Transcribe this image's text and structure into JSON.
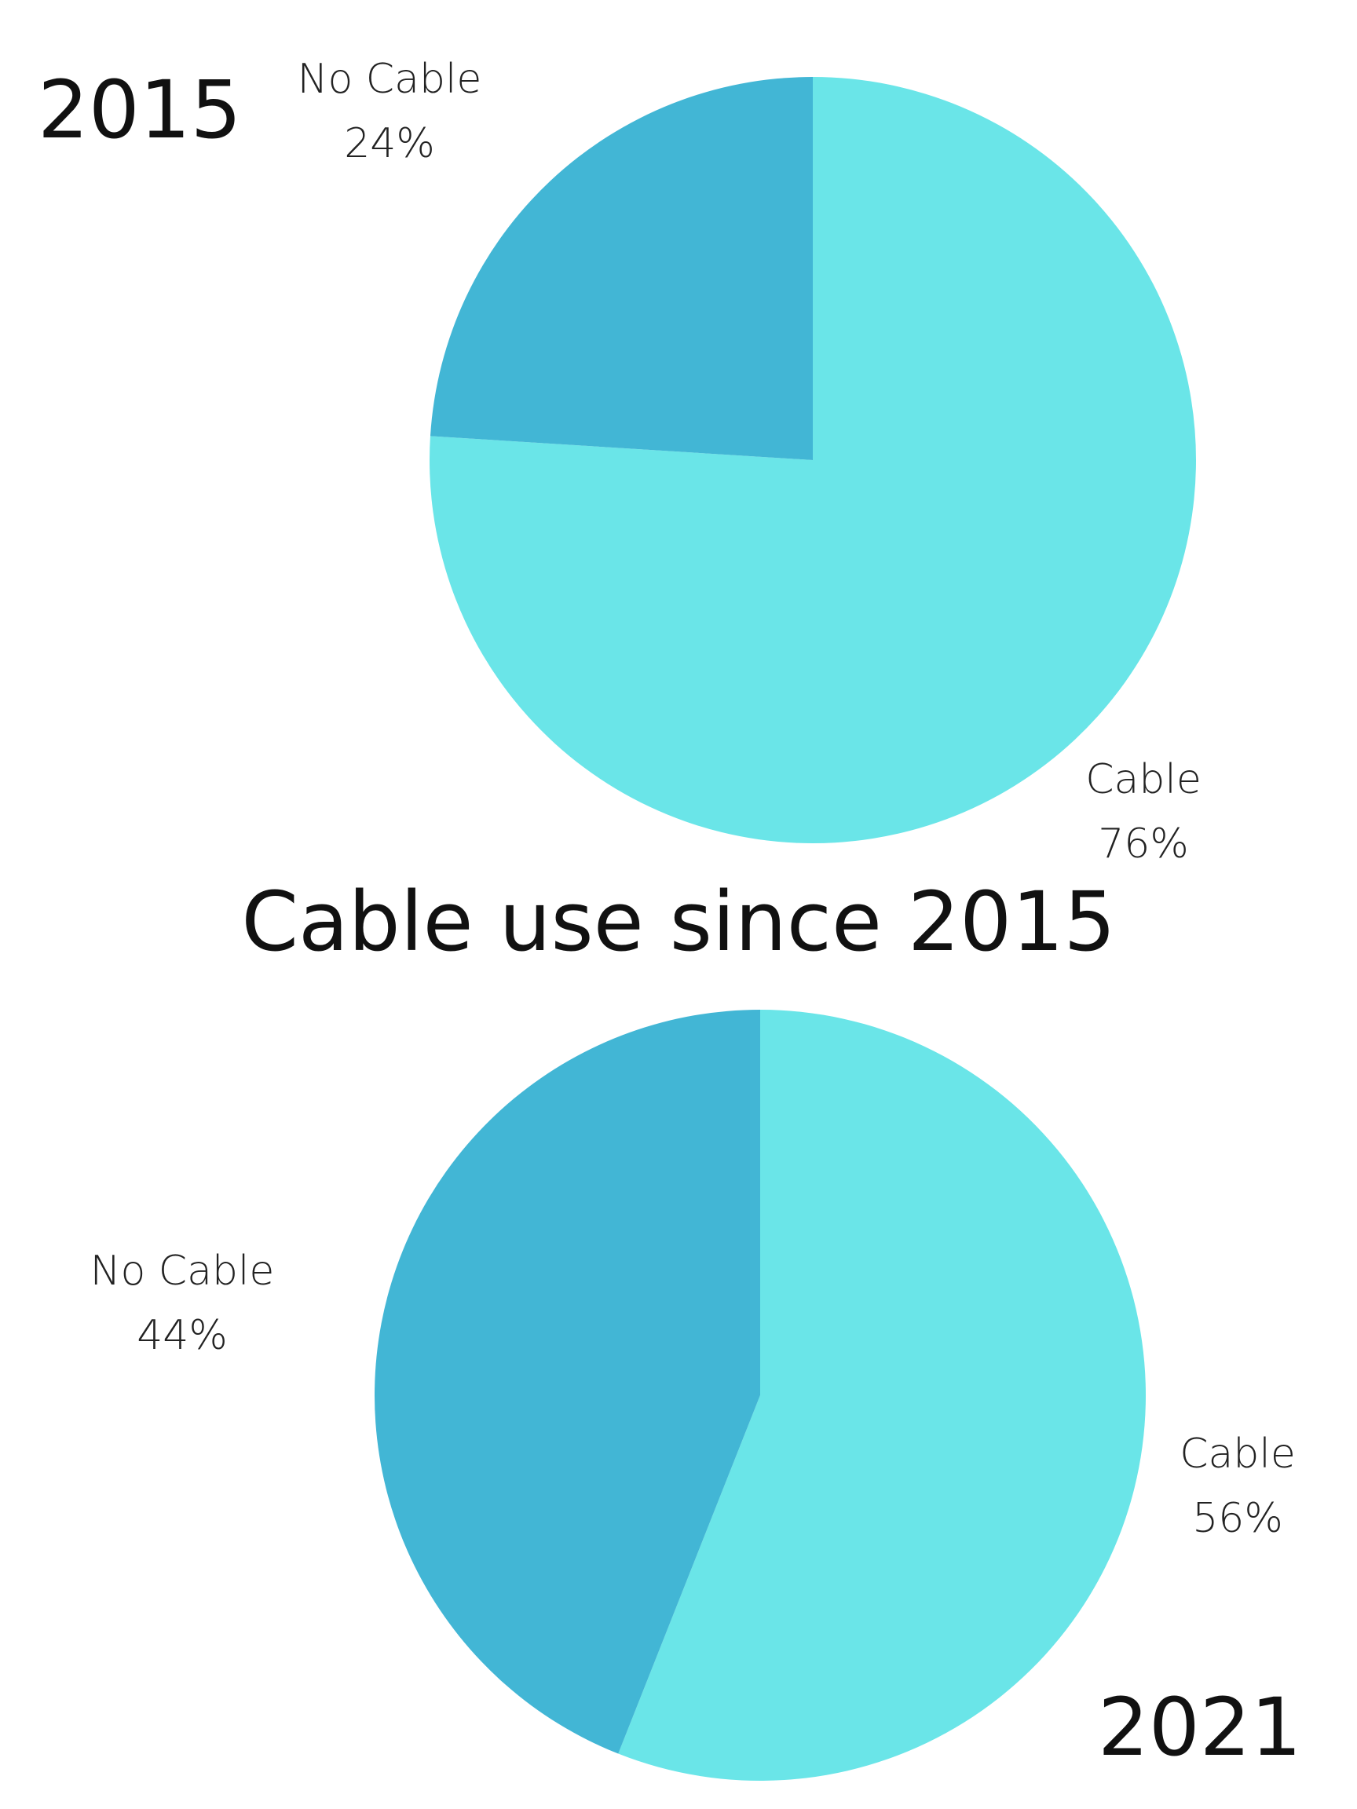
{
  "title": "Cable use since 2015",
  "colors": {
    "cable": "#6ae5e8",
    "no_cable": "#42b6d5"
  },
  "chart_data": [
    {
      "type": "pie",
      "title": "2015",
      "categories": [
        "Cable",
        "No Cable"
      ],
      "values": [
        76,
        24
      ],
      "value_labels": [
        "76%",
        "24%"
      ]
    },
    {
      "type": "pie",
      "title": "2021",
      "categories": [
        "Cable",
        "No Cable"
      ],
      "values": [
        56,
        44
      ],
      "value_labels": [
        "56%",
        "44%"
      ]
    }
  ]
}
